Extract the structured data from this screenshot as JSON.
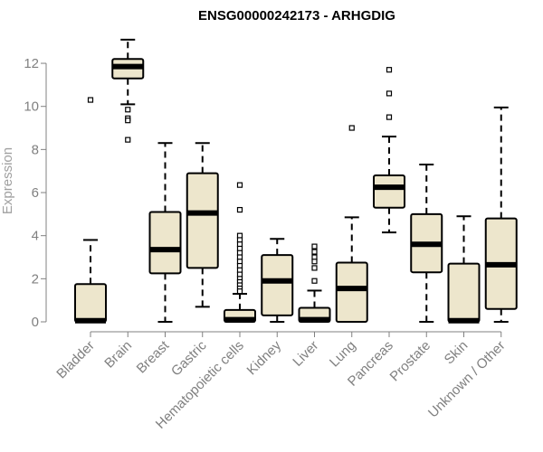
{
  "chart_data": {
    "type": "box",
    "title": "ENSG00000242173 - ARHGDIG",
    "xlabel": "",
    "ylabel": "Expression",
    "ylim": [
      0,
      13
    ],
    "yticks": [
      0,
      2,
      4,
      6,
      8,
      10,
      12
    ],
    "box_fill": "#ede6cc",
    "categories": [
      "Bladder",
      "Brain",
      "Breast",
      "Gastric",
      "Hematopoietic cells",
      "Kidney",
      "Liver",
      "Lung",
      "Pancreas",
      "Prostate",
      "Skin",
      "Unknown / Other"
    ],
    "boxes": [
      {
        "whisker_low": 0.0,
        "q1": 0.0,
        "median": 0.05,
        "q3": 1.75,
        "whisker_high": 3.8,
        "outliers": [
          10.3
        ]
      },
      {
        "whisker_low": 10.1,
        "q1": 11.3,
        "median": 11.85,
        "q3": 12.2,
        "whisker_high": 13.1,
        "outliers": [
          9.85,
          9.45,
          9.35,
          8.45
        ]
      },
      {
        "whisker_low": 0.0,
        "q1": 2.25,
        "median": 3.35,
        "q3": 5.1,
        "whisker_high": 8.3,
        "outliers": []
      },
      {
        "whisker_low": 0.7,
        "q1": 2.5,
        "median": 5.05,
        "q3": 6.9,
        "whisker_high": 8.3,
        "outliers": []
      },
      {
        "whisker_low": 0.0,
        "q1": 0.0,
        "median": 0.1,
        "q3": 0.55,
        "whisker_high": 1.3,
        "outliers": [
          6.35,
          5.2,
          4.0,
          3.8,
          3.6,
          3.4,
          3.2,
          3.0,
          2.8,
          2.6,
          2.4,
          2.2,
          2.0,
          1.85,
          1.7,
          1.55,
          1.42
        ]
      },
      {
        "whisker_low": 0.0,
        "q1": 0.3,
        "median": 1.9,
        "q3": 3.1,
        "whisker_high": 3.85,
        "outliers": []
      },
      {
        "whisker_low": 0.0,
        "q1": 0.0,
        "median": 0.1,
        "q3": 0.65,
        "whisker_high": 1.45,
        "outliers": [
          3.5,
          3.25,
          3.0,
          2.8,
          2.5,
          1.9
        ]
      },
      {
        "whisker_low": 0.0,
        "q1": 0.0,
        "median": 1.55,
        "q3": 2.75,
        "whisker_high": 4.85,
        "outliers": [
          9.0
        ]
      },
      {
        "whisker_low": 4.15,
        "q1": 5.3,
        "median": 6.25,
        "q3": 6.8,
        "whisker_high": 8.6,
        "outliers": [
          11.7,
          10.6,
          9.5
        ]
      },
      {
        "whisker_low": 0.0,
        "q1": 2.3,
        "median": 3.6,
        "q3": 5.0,
        "whisker_high": 7.3,
        "outliers": []
      },
      {
        "whisker_low": 0.0,
        "q1": 0.0,
        "median": 0.05,
        "q3": 2.7,
        "whisker_high": 4.9,
        "outliers": []
      },
      {
        "whisker_low": 0.0,
        "q1": 0.6,
        "median": 2.65,
        "q3": 4.8,
        "whisker_high": 9.95,
        "outliers": []
      }
    ]
  }
}
